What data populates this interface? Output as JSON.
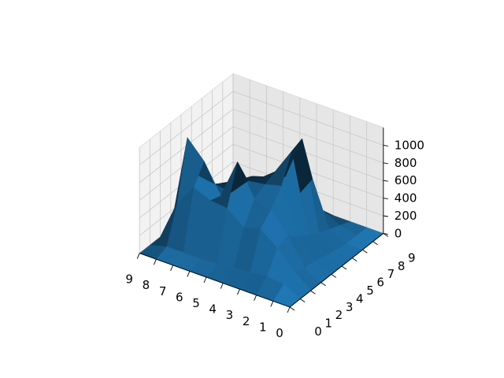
{
  "chart_data": {
    "type": "surface",
    "title": "",
    "xlabel": "",
    "ylabel": "",
    "zlabel": "",
    "color": "#1f77b4",
    "grid": true,
    "x": [
      0,
      1,
      2,
      3,
      4,
      5,
      6,
      7,
      8,
      9
    ],
    "y": [
      0,
      1,
      2,
      3,
      4,
      5,
      6,
      7,
      8,
      9
    ],
    "z": [
      [
        0,
        0,
        0,
        0,
        0,
        0,
        0,
        0,
        0,
        0
      ],
      [
        0,
        100,
        150,
        100,
        80,
        50,
        20,
        0,
        0,
        0
      ],
      [
        0,
        120,
        350,
        400,
        300,
        220,
        150,
        100,
        50,
        0
      ],
      [
        0,
        100,
        500,
        620,
        800,
        1100,
        1150,
        600,
        150,
        0
      ],
      [
        0,
        80,
        450,
        680,
        750,
        800,
        650,
        320,
        130,
        0
      ],
      [
        0,
        60,
        600,
        1030,
        720,
        650,
        580,
        350,
        200,
        0
      ],
      [
        0,
        50,
        620,
        580,
        520,
        550,
        520,
        300,
        150,
        0
      ],
      [
        0,
        50,
        700,
        900,
        550,
        450,
        400,
        230,
        80,
        0
      ],
      [
        0,
        50,
        450,
        1100,
        580,
        380,
        300,
        150,
        0,
        0
      ],
      [
        0,
        0,
        0,
        0,
        0,
        0,
        0,
        0,
        0,
        0
      ]
    ],
    "x_ticks": [
      "0",
      "1",
      "2",
      "3",
      "4",
      "5",
      "6",
      "7",
      "8",
      "9"
    ],
    "y_ticks": [
      "0",
      "1",
      "2",
      "3",
      "4",
      "5",
      "6",
      "7",
      "8",
      "9"
    ],
    "z_ticks": [
      "0",
      "200",
      "400",
      "600",
      "800",
      "1000"
    ],
    "xlim": [
      0,
      9
    ],
    "ylim": [
      0,
      9
    ],
    "zlim": [
      0,
      1200
    ]
  }
}
